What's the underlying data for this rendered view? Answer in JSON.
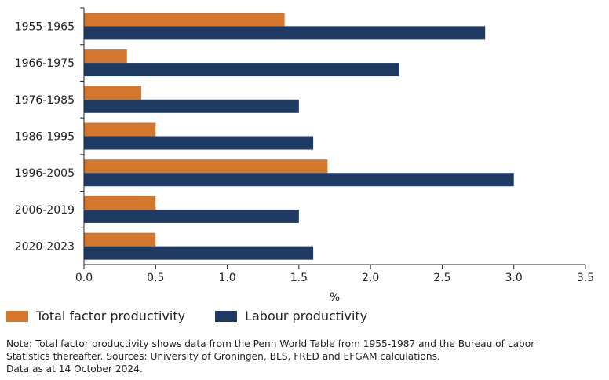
{
  "chart_data": {
    "type": "bar",
    "orientation": "horizontal",
    "categories": [
      "1955-1965",
      "1966-1975",
      "1976-1985",
      "1986-1995",
      "1996-2005",
      "2006-2019",
      "2020-2023"
    ],
    "series": [
      {
        "name": "Total factor productivity",
        "values": [
          1.4,
          0.3,
          0.4,
          0.5,
          1.7,
          0.5,
          0.5
        ],
        "color": "#d4762b"
      },
      {
        "name": "Labour productivity",
        "values": [
          2.8,
          2.2,
          1.5,
          1.6,
          3.0,
          1.5,
          1.6
        ],
        "color": "#1e3a63"
      }
    ],
    "xlabel": "%",
    "ylabel": "",
    "xlim": [
      0,
      3.5
    ],
    "xticks": [
      0,
      0.5,
      1,
      1.5,
      2,
      2.5,
      3,
      3.5
    ],
    "xtick_labels": [
      "0.0",
      "0.5",
      "1.0",
      "1.5",
      "2.0",
      "2.5",
      "3.0",
      "3.5"
    ],
    "grid": false,
    "legend_position": "bottom-left"
  },
  "note": {
    "line1": "Note: Total factor productivity shows data from the Penn World Table from 1955-1987 and the Bureau of Labor",
    "line2": "Statistics thereafter. Sources: University of Groningen, BLS, FRED and EFGAM calculations.",
    "line3": "Data as at 14 October 2024."
  }
}
